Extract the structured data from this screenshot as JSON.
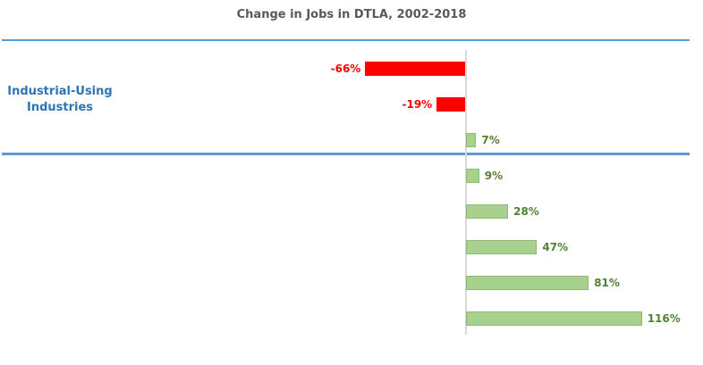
{
  "title": "Change in Jobs in DTLA, 2002-2018",
  "group_label": "Industrial-Using Industries",
  "colors": {
    "title": "#595959",
    "divider_blue": "#5B9BD5",
    "group_label_blue": "#2E75B6",
    "axis_gray": "#D9D9D9",
    "negative_bar": "#FF0000",
    "positive_bar_fill": "#A9D18E",
    "positive_bar_border": "#8CB973",
    "negative_label": "#FF0000",
    "positive_label": "#538135"
  },
  "chart_data": {
    "type": "bar",
    "orientation": "horizontal",
    "title": "Change in Jobs in DTLA, 2002-2018",
    "values": [
      -66,
      -19,
      7,
      9,
      28,
      47,
      81,
      116
    ],
    "labels": [
      "-66%",
      "-19%",
      "7%",
      "9%",
      "28%",
      "47%",
      "81%",
      "116%"
    ],
    "annotation": "Industrial-Using Industries",
    "annotation_applies_to_first_n_bars": 3,
    "baseline": 0,
    "value_labels_shown": true,
    "axis_tick_labels_shown": false,
    "gridlines": false,
    "legend": false
  }
}
